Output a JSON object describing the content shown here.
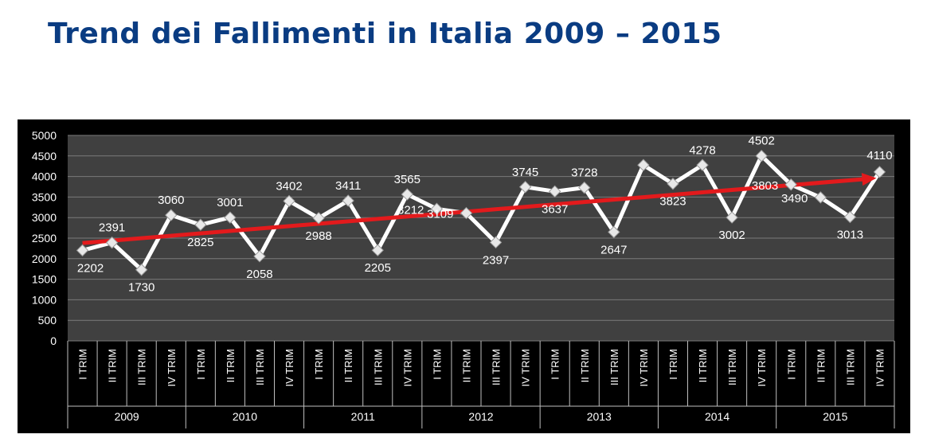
{
  "title": "Trend dei Fallimenti in Italia 2009 – 2015",
  "chart_data": {
    "type": "line",
    "title": "Trend dei Fallimenti in Italia 2009 – 2015",
    "categories": [
      "I TRIM",
      "II TRIM",
      "III TRIM",
      "IV TRIM",
      "I TRIM",
      "II TRIM",
      "III TRIM",
      "IV TRIM",
      "I TRIM",
      "II TRIM",
      "III TRIM",
      "IV TRIM",
      "I TRIM",
      "II TRIM",
      "III TRIM",
      "IV TRIM",
      "I TRIM",
      "II TRIM",
      "III TRIM",
      "IV TRIM",
      "I TRIM",
      "II TRIM",
      "III TRIM",
      "IV TRIM",
      "I TRIM",
      "II TRIM",
      "III TRIM",
      "IV TRIM"
    ],
    "groups": [
      "2009",
      "2010",
      "2011",
      "2012",
      "2013",
      "2014",
      "2015"
    ],
    "series": [
      {
        "values": [
          2202,
          2391,
          1730,
          3060,
          2825,
          3001,
          2058,
          3402,
          2988,
          3411,
          2205,
          3565,
          3212,
          3109,
          2397,
          3745,
          3637,
          3728,
          2647,
          4278,
          3823,
          4278,
          3002,
          4502,
          3803,
          3490,
          3013,
          4110
        ]
      }
    ],
    "data_labels": [
      "2202",
      "2391",
      "1730",
      "3060",
      "2825",
      "3001",
      "2058",
      "3402",
      "2988",
      "3411",
      "2205",
      "3565",
      "3212",
      "3109",
      "2397",
      "3745",
      "3637",
      "3728",
      "2647",
      "",
      "3823",
      "4278",
      "3002",
      "4502",
      "3803",
      "3490",
      "3013",
      "4110"
    ],
    "trendline": {
      "start": 2380,
      "end": 3960
    },
    "y_ticks": [
      "0",
      "500",
      "1000",
      "1500",
      "2000",
      "2500",
      "3000",
      "3500",
      "4000",
      "4500",
      "5000"
    ],
    "ylim": [
      0,
      5000
    ],
    "grid": true,
    "colors": {
      "background": "#000000",
      "plot": "#404040",
      "line": "#ffffff",
      "trend": "#e31a1c",
      "text": "#ffffff",
      "grid": "#7a7a7a"
    }
  }
}
